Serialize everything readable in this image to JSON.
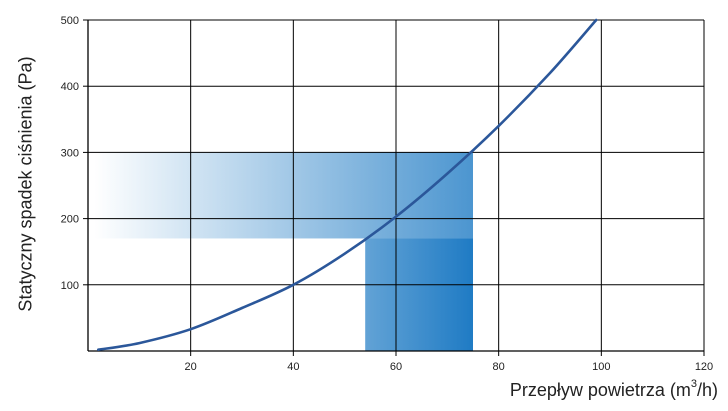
{
  "chart_data": {
    "type": "line",
    "xlabel_text": "Przepływ powietrza (m",
    "xlabel_sup": "3",
    "xlabel_tail": "/h)",
    "ylabel": "Statyczny spadek ciśnienia (Pa)",
    "xlim": [
      0,
      120
    ],
    "ylim": [
      0,
      500
    ],
    "x_ticks": [
      20,
      40,
      60,
      80,
      100,
      120
    ],
    "y_ticks": [
      100,
      200,
      300,
      400,
      500
    ],
    "grid": true,
    "series": [
      {
        "color": "#2b579a",
        "x": [
          2,
          10,
          20,
          30,
          40,
          50,
          60,
          70,
          80,
          90,
          99
        ],
        "y": [
          2,
          12,
          33,
          65,
          100,
          147,
          203,
          268,
          340,
          420,
          500
        ]
      }
    ],
    "working_range": {
      "x_min": 54,
      "x_max": 75,
      "y_min": 170,
      "y_max": 300,
      "color": "#1f7bc4"
    }
  }
}
